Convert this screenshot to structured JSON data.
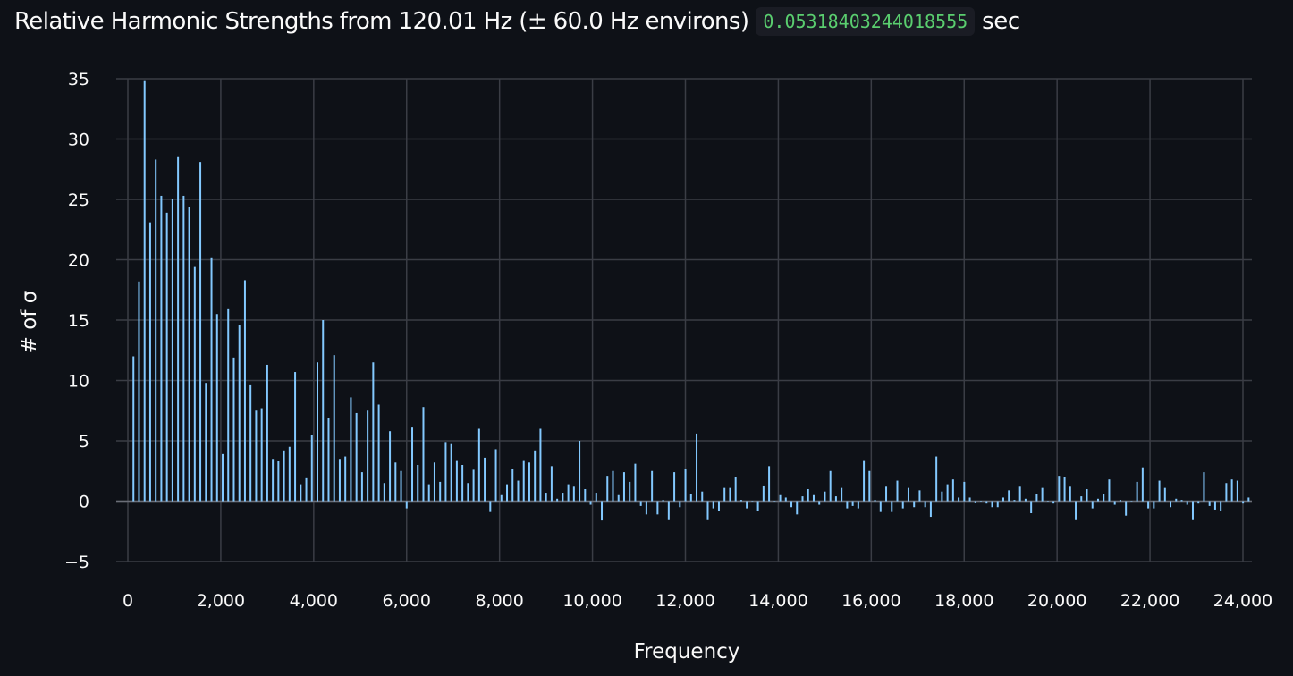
{
  "header": {
    "title": "Relative Harmonic Strengths from 120.01 Hz (± 60.0 Hz environs)",
    "duration": "0.05318403244018555",
    "unit": "sec"
  },
  "colors": {
    "background": "#0e1117",
    "bar": "#83c9ff",
    "grid": "#3a3d45",
    "text": "#fafafa",
    "code": "#5ace6f"
  },
  "chart_data": {
    "type": "bar",
    "xlabel": "Frequency",
    "ylabel": "# of σ",
    "xlim": [
      0,
      24000
    ],
    "ylim": [
      -5,
      35
    ],
    "xticks": [
      0,
      2000,
      4000,
      6000,
      8000,
      10000,
      12000,
      14000,
      16000,
      18000,
      20000,
      22000,
      24000
    ],
    "xtick_labels": [
      "0",
      "2,000",
      "4,000",
      "6,000",
      "8,000",
      "10,000",
      "12,000",
      "14,000",
      "16,000",
      "18,000",
      "20,000",
      "22,000",
      "24,000"
    ],
    "yticks": [
      -5,
      0,
      5,
      10,
      15,
      20,
      25,
      30,
      35
    ],
    "ytick_labels": [
      "−5",
      "0",
      "5",
      "10",
      "15",
      "20",
      "25",
      "30",
      "35"
    ],
    "grid": true,
    "harmonic_spacing": 120.01,
    "values": [
      12.0,
      18.2,
      34.8,
      23.1,
      28.3,
      25.3,
      23.9,
      25.0,
      28.5,
      25.3,
      24.4,
      19.4,
      28.1,
      9.8,
      20.2,
      15.5,
      3.9,
      15.9,
      11.9,
      14.6,
      18.3,
      9.6,
      7.5,
      7.7,
      11.3,
      3.5,
      3.3,
      4.2,
      4.5,
      10.7,
      1.4,
      1.9,
      5.5,
      11.5,
      15.0,
      6.9,
      12.1,
      3.5,
      3.7,
      8.6,
      7.3,
      2.4,
      7.5,
      11.5,
      8.0,
      1.5,
      5.8,
      3.2,
      2.5,
      -0.6,
      6.1,
      3.0,
      7.8,
      1.4,
      3.2,
      1.6,
      4.9,
      4.8,
      3.4,
      3.0,
      1.5,
      2.6,
      6.0,
      3.6,
      -0.9,
      4.3,
      0.5,
      1.4,
      2.7,
      1.7,
      3.4,
      3.2,
      4.2,
      6.0,
      0.7,
      2.9,
      0.2,
      0.7,
      1.4,
      1.2,
      5.0,
      1.0,
      -0.3,
      0.7,
      -1.6,
      2.1,
      2.5,
      0.5,
      2.4,
      1.6,
      3.1,
      -0.4,
      -1.1,
      2.5,
      -1.1,
      0.1,
      -1.5,
      2.4,
      -0.5,
      2.7,
      0.6,
      5.6,
      0.8,
      -1.5,
      -0.6,
      -0.8,
      1.1,
      1.1,
      2.0,
      0.1,
      -0.6,
      0.0,
      -0.8,
      1.3,
      2.9,
      0.0,
      0.5,
      0.3,
      -0.5,
      -1.1,
      0.4,
      1.0,
      0.5,
      -0.3,
      0.8,
      2.5,
      0.4,
      1.1,
      -0.6,
      -0.4,
      -0.6,
      3.4,
      2.5,
      0.1,
      -0.9,
      1.2,
      -0.9,
      1.7,
      -0.6,
      1.1,
      -0.5,
      0.9,
      -0.5,
      -1.3,
      3.7,
      0.8,
      1.4,
      1.8,
      0.3,
      1.6,
      0.3,
      -0.1,
      0.0,
      -0.2,
      -0.5,
      -0.5,
      0.3,
      0.9,
      0.1,
      1.2,
      0.2,
      -1.0,
      0.6,
      1.1,
      0.0,
      -0.2,
      2.1,
      2.0,
      1.2,
      -1.5,
      0.4,
      1.0,
      -0.6,
      0.2,
      0.6,
      1.8,
      -0.3,
      0.1,
      -1.2,
      0.0,
      1.6,
      2.8,
      -0.6,
      -0.6,
      1.7,
      1.1,
      -0.5,
      0.2,
      0.1,
      -0.3,
      -1.5,
      -0.2,
      2.4,
      -0.4,
      -0.7,
      -0.8,
      1.5,
      1.8,
      1.7,
      -0.2,
      0.3
    ]
  }
}
